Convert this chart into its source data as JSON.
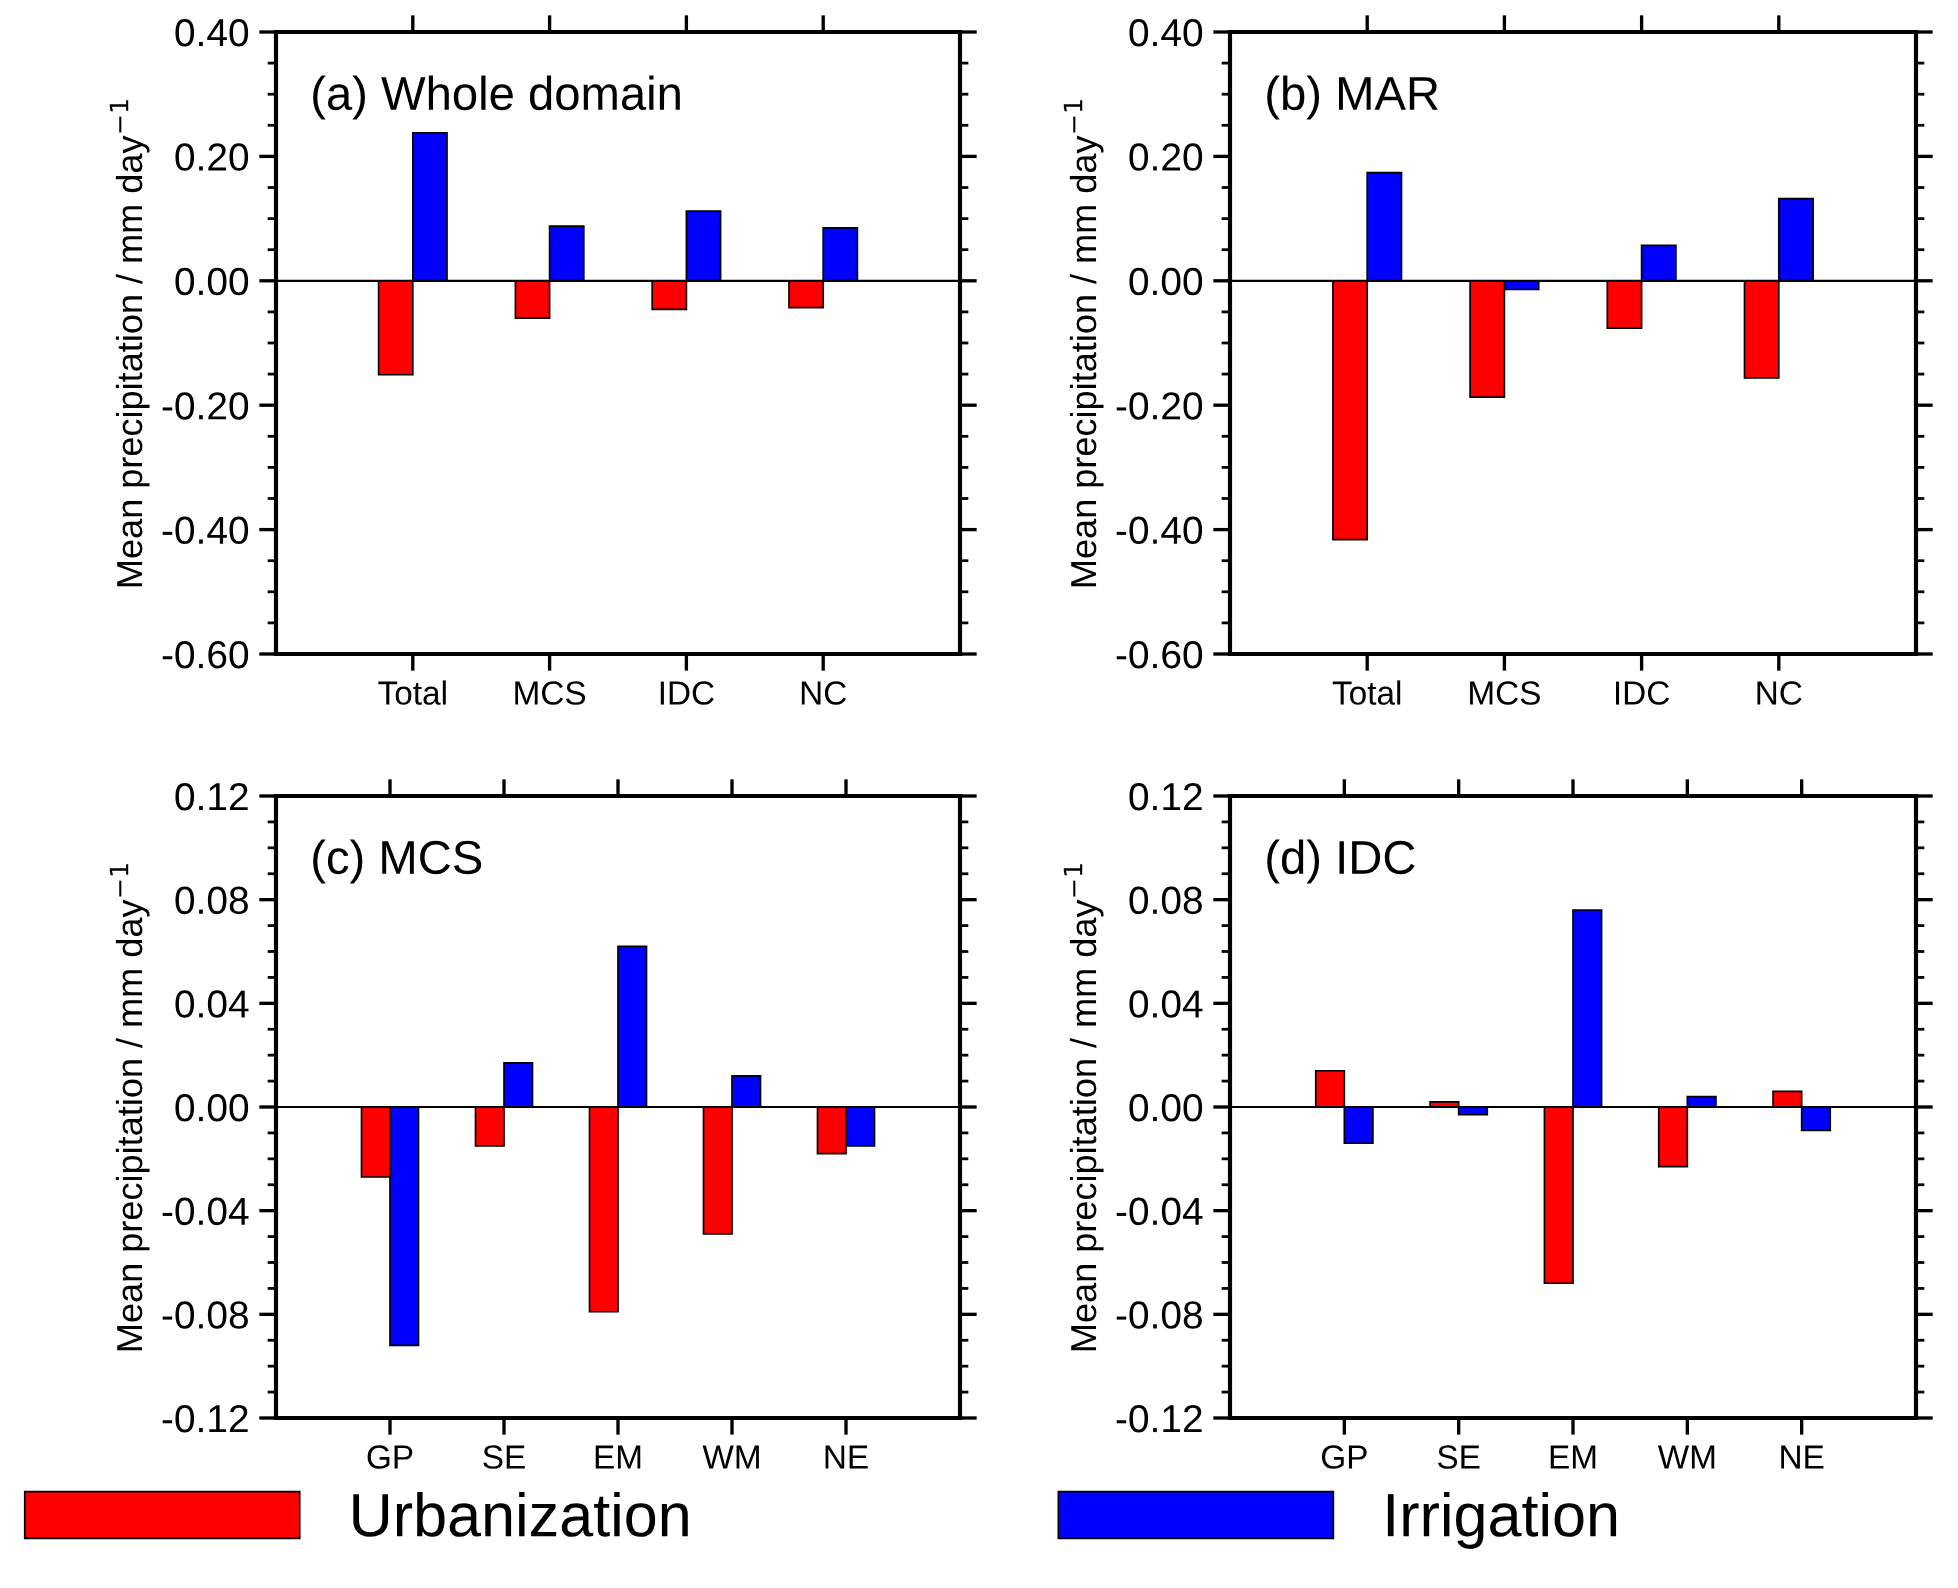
{
  "chart_data": [
    {
      "type": "bar",
      "title": "(a) Whole domain",
      "ylabel": "Mean precipitation / mm day$^{−1}$",
      "categories": [
        "Total",
        "MCS",
        "IDC",
        "NC"
      ],
      "series": [
        {
          "name": "Urbanization",
          "color": "#ff0000",
          "values": [
            -0.151,
            -0.06,
            -0.046,
            -0.043
          ]
        },
        {
          "name": "Irrigation",
          "color": "#0000ff",
          "values": [
            0.238,
            0.088,
            0.112,
            0.085
          ]
        }
      ],
      "ylim": [
        -0.6,
        0.4
      ],
      "yticks": [
        {
          "value": -0.6,
          "label": "-0.60"
        },
        {
          "value": -0.4,
          "label": "-0.40"
        },
        {
          "value": -0.2,
          "label": "-0.20"
        },
        {
          "value": 0,
          "label": "0.00"
        },
        {
          "value": 0.2,
          "label": "0.20"
        },
        {
          "value": 0.4,
          "label": "0.40"
        }
      ],
      "ref_lines": [
        {
          "axis": "y",
          "value": 0,
          "color": "#000000"
        }
      ],
      "legend": "bottom"
    },
    {
      "type": "bar",
      "title": "(b) MAR",
      "ylabel": "Mean precipitation / mm day$^{−1}$",
      "categories": [
        "Total",
        "MCS",
        "IDC",
        "NC"
      ],
      "series": [
        {
          "color": "#ff0000",
          "values": [
            -0.416,
            -0.187,
            -0.076,
            -0.156
          ]
        },
        {
          "color": "#0000ff",
          "values": [
            0.174,
            -0.014,
            0.057,
            0.132
          ]
        }
      ],
      "ylim": [
        -0.6,
        0.4
      ],
      "yticks": [
        {
          "value": -0.6,
          "label": "-0.60"
        },
        {
          "value": -0.4,
          "label": "-0.40"
        },
        {
          "value": -0.2,
          "label": "-0.20"
        },
        {
          "value": 0,
          "label": "0.00"
        },
        {
          "value": 0.2,
          "label": "0.20"
        },
        {
          "value": 0.4,
          "label": "0.40"
        }
      ],
      "ref_lines": [
        {
          "axis": "y",
          "value": 0,
          "color": "#000000"
        }
      ]
    },
    {
      "type": "bar",
      "title": "(c) MCS",
      "ylabel": "Mean precipitation / mm day$^{−1}$",
      "categories": [
        "GP",
        "SE",
        "EM",
        "WM",
        "NE"
      ],
      "series": [
        {
          "color": "#ff0000",
          "values": [
            -0.027,
            -0.015,
            -0.079,
            -0.049,
            -0.018
          ]
        },
        {
          "color": "#0000ff",
          "values": [
            -0.092,
            0.017,
            0.062,
            0.012,
            -0.015
          ]
        }
      ],
      "ylim": [
        -0.12,
        0.12
      ],
      "yticks": [
        {
          "value": -0.12,
          "label": "-0.12"
        },
        {
          "value": -0.08,
          "label": "-0.08"
        },
        {
          "value": -0.04,
          "label": "-0.04"
        },
        {
          "value": 0,
          "label": "0.00"
        },
        {
          "value": 0.04,
          "label": "0.04"
        },
        {
          "value": 0.08,
          "label": "0.08"
        },
        {
          "value": 0.12,
          "label": "0.12"
        }
      ],
      "ref_lines": [
        {
          "axis": "y",
          "value": 0,
          "color": "#000000"
        }
      ]
    },
    {
      "type": "bar",
      "title": "(d) IDC",
      "ylabel": "Mean precipitation / mm day$^{−1}$",
      "categories": [
        "GP",
        "SE",
        "EM",
        "WM",
        "NE"
      ],
      "series": [
        {
          "color": "#ff0000",
          "values": [
            0.014,
            0.002,
            -0.068,
            -0.023,
            0.006
          ]
        },
        {
          "color": "#0000ff",
          "values": [
            -0.014,
            -0.003,
            0.076,
            0.004,
            -0.009
          ]
        }
      ],
      "ylim": [
        -0.12,
        0.12
      ],
      "yticks": [
        {
          "value": -0.12,
          "label": "-0.12"
        },
        {
          "value": -0.08,
          "label": "-0.08"
        },
        {
          "value": -0.04,
          "label": "-0.04"
        },
        {
          "value": 0,
          "label": "0.00"
        },
        {
          "value": 0.04,
          "label": "0.04"
        },
        {
          "value": 0.08,
          "label": "0.08"
        },
        {
          "value": 0.12,
          "label": "0.12"
        }
      ],
      "ref_lines": [
        {
          "axis": "y",
          "value": 0,
          "color": "#000000"
        }
      ]
    }
  ]
}
